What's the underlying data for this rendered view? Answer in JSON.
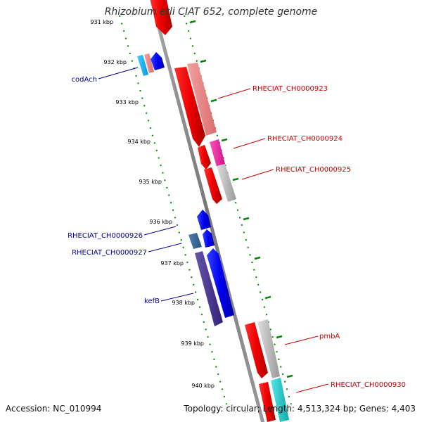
{
  "title": "Rhizobium etli CIAT 652, complete genome",
  "footer": {
    "accession": "Accession: NC_010994",
    "summary": "Topology: circular; Length: 4,513,324 bp; Genes: 4,403"
  },
  "ticks": [
    "931 kbp",
    "932 kbp",
    "933 kbp",
    "934 kbp",
    "935 kbp",
    "936 kbp",
    "937 kbp",
    "938 kbp",
    "939 kbp",
    "940 kbp"
  ],
  "gene_labels": {
    "codAch": "codAch",
    "g923": "RHECIAT_CH0000923",
    "g924": "RHECIAT_CH0000924",
    "g925": "RHECIAT_CH0000925",
    "g926": "RHECIAT_CH0000926",
    "g927": "RHECIAT_CH0000927",
    "kefB": "kefB",
    "pmbA": "pmbA",
    "g930": "RHECIAT_CH0000930"
  },
  "colors": {
    "plus_strand_label": "#cc0000",
    "minus_strand_label": "#000099",
    "backbone": "#888888",
    "tick_dots": "#008800"
  }
}
